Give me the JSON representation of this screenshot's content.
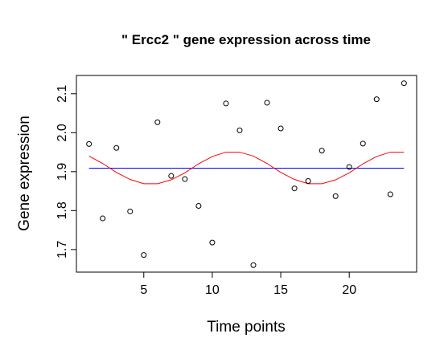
{
  "chart_data": {
    "type": "scatter",
    "title": "\" Ercc2 \" gene expression across time",
    "xlabel": "Time points",
    "ylabel": "Gene expression",
    "xlim": [
      0.08,
      24.92
    ],
    "ylim": [
      1.642,
      2.147
    ],
    "x_ticks": [
      5,
      10,
      15,
      20
    ],
    "y_ticks": [
      1.7,
      1.8,
      1.9,
      2.0,
      2.1
    ],
    "grid": false,
    "points": {
      "x": [
        1,
        2,
        3,
        4,
        5,
        6,
        7,
        8,
        9,
        10,
        11,
        12,
        13,
        14,
        15,
        16,
        17,
        18,
        19,
        20,
        21,
        22,
        23,
        24
      ],
      "y": [
        1.971,
        1.78,
        1.961,
        1.798,
        1.686,
        2.027,
        1.889,
        1.881,
        1.812,
        1.718,
        2.075,
        2.006,
        1.66,
        2.077,
        2.011,
        1.857,
        1.876,
        1.954,
        1.837,
        1.912,
        1.972,
        2.086,
        1.842,
        2.127
      ],
      "color": "#000000"
    },
    "series": [
      {
        "type": "line",
        "color": "#0000ff",
        "x": [
          1,
          24
        ],
        "y": [
          1.909,
          1.909
        ]
      },
      {
        "type": "line",
        "color": "#ff0000",
        "x": [
          1,
          2,
          3,
          4,
          5,
          6,
          7,
          8,
          9,
          10,
          11,
          12,
          13,
          14,
          15,
          16,
          17,
          18,
          19,
          20,
          21,
          22,
          23,
          24
        ],
        "y": [
          1.94,
          1.921,
          1.898,
          1.88,
          1.869,
          1.869,
          1.879,
          1.897,
          1.92,
          1.939,
          1.95,
          1.95,
          1.94,
          1.921,
          1.898,
          1.88,
          1.869,
          1.869,
          1.879,
          1.897,
          1.92,
          1.939,
          1.95,
          1.95
        ]
      }
    ]
  }
}
